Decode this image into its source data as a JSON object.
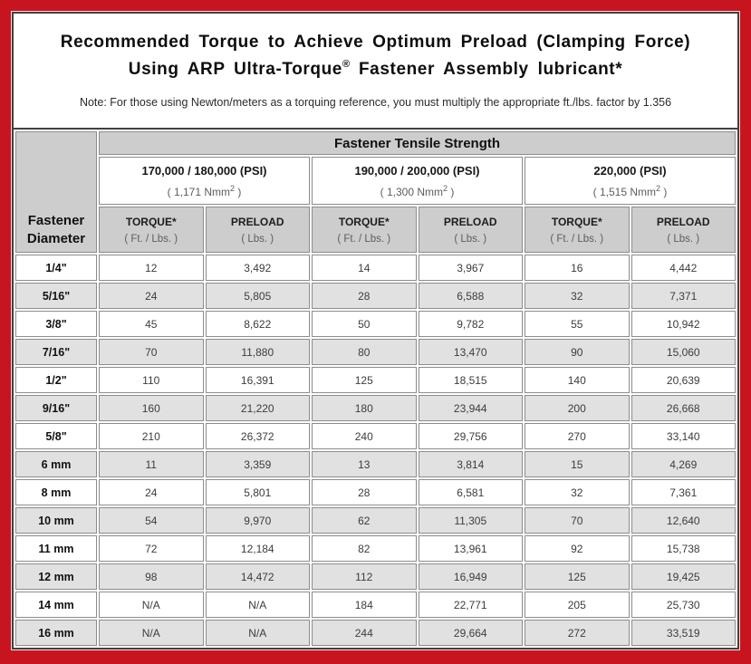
{
  "colors": {
    "frame_red": "#c8141e",
    "outer_border_dark": "#414141",
    "cell_border_gray": "#8c8c8c",
    "header_gray": "#cdcdcd",
    "alt_row_gray": "#e1e1e1",
    "muted_text": "#5d5d5d"
  },
  "title": {
    "line1": "Recommended Torque to Achieve Optimum Preload (Clamping Force)",
    "line2_pre": "Using ARP Ultra-Torque",
    "line2_sup": "®",
    "line2_post": " Fastener Assembly lubricant*",
    "note": "Note: For those using Newton/meters as a torquing reference, you must multiply the appropriate ft./lbs. factor by 1.356"
  },
  "table": {
    "corner_line1": "Fastener",
    "corner_line2": "Diameter",
    "tensile_header": "Fastener Tensile Strength",
    "groups": [
      {
        "psi": "170,000 / 180,000 (PSI)",
        "nmm_pre": "( 1,171 Nmm",
        "nmm_sup": "2",
        "nmm_post": " )"
      },
      {
        "psi": "190,000 / 200,000 (PSI)",
        "nmm_pre": "( 1,300 Nmm",
        "nmm_sup": "2",
        "nmm_post": " )"
      },
      {
        "psi": "220,000 (PSI)",
        "nmm_pre": "( 1,515 Nmm",
        "nmm_sup": "2",
        "nmm_post": " )"
      }
    ],
    "col_headers": {
      "torque_label": "TORQUE*",
      "torque_unit": "( Ft. / Lbs. )",
      "preload_label": "PRELOAD",
      "preload_unit": "( Lbs. )"
    },
    "rows": [
      {
        "dia": "1/4\"",
        "values": [
          "12",
          "3,492",
          "14",
          "3,967",
          "16",
          "4,442"
        ]
      },
      {
        "dia": "5/16\"",
        "values": [
          "24",
          "5,805",
          "28",
          "6,588",
          "32",
          "7,371"
        ]
      },
      {
        "dia": "3/8\"",
        "values": [
          "45",
          "8,622",
          "50",
          "9,782",
          "55",
          "10,942"
        ]
      },
      {
        "dia": "7/16\"",
        "values": [
          "70",
          "11,880",
          "80",
          "13,470",
          "90",
          "15,060"
        ]
      },
      {
        "dia": "1/2\"",
        "values": [
          "110",
          "16,391",
          "125",
          "18,515",
          "140",
          "20,639"
        ]
      },
      {
        "dia": "9/16\"",
        "values": [
          "160",
          "21,220",
          "180",
          "23,944",
          "200",
          "26,668"
        ]
      },
      {
        "dia": "5/8\"",
        "values": [
          "210",
          "26,372",
          "240",
          "29,756",
          "270",
          "33,140"
        ]
      },
      {
        "dia": "6 mm",
        "values": [
          "11",
          "3,359",
          "13",
          "3,814",
          "15",
          "4,269"
        ]
      },
      {
        "dia": "8 mm",
        "values": [
          "24",
          "5,801",
          "28",
          "6,581",
          "32",
          "7,361"
        ]
      },
      {
        "dia": "10 mm",
        "values": [
          "54",
          "9,970",
          "62",
          "11,305",
          "70",
          "12,640"
        ]
      },
      {
        "dia": "11 mm",
        "values": [
          "72",
          "12,184",
          "82",
          "13,961",
          "92",
          "15,738"
        ]
      },
      {
        "dia": "12 mm",
        "values": [
          "98",
          "14,472",
          "112",
          "16,949",
          "125",
          "19,425"
        ]
      },
      {
        "dia": "14 mm",
        "values": [
          "N/A",
          "N/A",
          "184",
          "22,771",
          "205",
          "25,730"
        ]
      },
      {
        "dia": "16 mm",
        "values": [
          "N/A",
          "N/A",
          "244",
          "29,664",
          "272",
          "33,519"
        ]
      }
    ]
  }
}
